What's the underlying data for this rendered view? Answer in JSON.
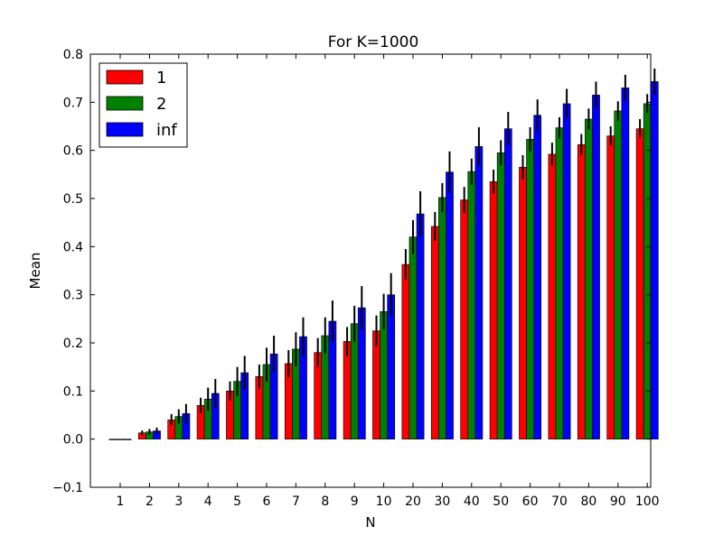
{
  "chart_data": {
    "type": "bar",
    "title": "For K=1000",
    "xlabel": "N",
    "ylabel": "Mean",
    "ylim": [
      -0.1,
      0.8
    ],
    "yticks": [
      -0.1,
      0.0,
      0.1,
      0.2,
      0.3,
      0.4,
      0.5,
      0.6,
      0.7,
      0.8
    ],
    "ytick_labels": [
      "−0.1",
      "0.0",
      "0.1",
      "0.2",
      "0.3",
      "0.4",
      "0.5",
      "0.6",
      "0.7",
      "0.8"
    ],
    "categories": [
      "1",
      "2",
      "3",
      "4",
      "5",
      "6",
      "7",
      "8",
      "9",
      "10",
      "20",
      "30",
      "40",
      "50",
      "60",
      "70",
      "80",
      "90",
      "100"
    ],
    "legend_position": "top-left",
    "grid": false,
    "series": [
      {
        "name": "1",
        "color": "#ff0000",
        "values": [
          0.0,
          0.013,
          0.04,
          0.07,
          0.1,
          0.13,
          0.157,
          0.18,
          0.203,
          0.225,
          0.363,
          0.442,
          0.497,
          0.535,
          0.565,
          0.592,
          0.612,
          0.63,
          0.645
        ],
        "errors": [
          0.0,
          0.005,
          0.012,
          0.016,
          0.02,
          0.025,
          0.028,
          0.03,
          0.03,
          0.032,
          0.032,
          0.03,
          0.027,
          0.025,
          0.025,
          0.024,
          0.022,
          0.02,
          0.02
        ]
      },
      {
        "name": "2",
        "color": "#008000",
        "values": [
          0.0,
          0.015,
          0.047,
          0.083,
          0.12,
          0.155,
          0.187,
          0.215,
          0.24,
          0.265,
          0.42,
          0.502,
          0.556,
          0.595,
          0.623,
          0.647,
          0.665,
          0.682,
          0.697
        ],
        "errors": [
          0.0,
          0.006,
          0.015,
          0.024,
          0.03,
          0.035,
          0.035,
          0.038,
          0.037,
          0.037,
          0.035,
          0.03,
          0.027,
          0.026,
          0.025,
          0.022,
          0.022,
          0.02,
          0.02
        ]
      },
      {
        "name": "inf",
        "color": "#0000ff",
        "values": [
          0.0,
          0.017,
          0.053,
          0.095,
          0.138,
          0.177,
          0.213,
          0.245,
          0.273,
          0.3,
          0.468,
          0.555,
          0.608,
          0.645,
          0.673,
          0.697,
          0.715,
          0.73,
          0.743
        ],
        "errors": [
          0.0,
          0.007,
          0.02,
          0.03,
          0.035,
          0.038,
          0.04,
          0.043,
          0.045,
          0.045,
          0.047,
          0.043,
          0.04,
          0.035,
          0.033,
          0.031,
          0.028,
          0.027,
          0.027
        ]
      }
    ]
  }
}
